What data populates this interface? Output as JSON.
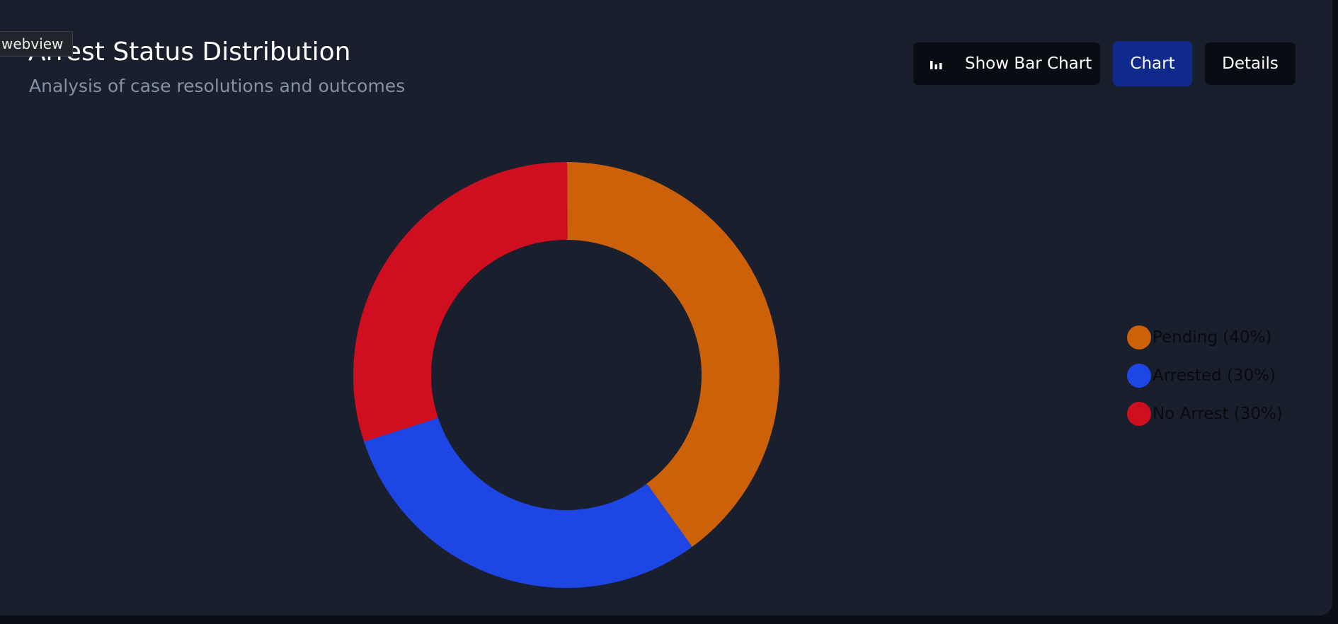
{
  "webview_tag": "webview",
  "header": {
    "title": "Arrest Status Distribution",
    "subtitle": "Analysis of case resolutions and outcomes"
  },
  "toolbar": {
    "bar_chart_label": "Show Bar Chart",
    "bar_chart_icon": "bar-chart-icon",
    "chart_label": "Chart",
    "details_label": "Details",
    "active_view": "Chart"
  },
  "colors": {
    "pending": "#cc610a",
    "arrested": "#1d46e5",
    "no_arrest": "#cf0f20",
    "active_button": "#0f2a8c"
  },
  "legend": {
    "items": [
      {
        "label": "Pending (40%)",
        "color": "#cc610a"
      },
      {
        "label": "Arrested (30%)",
        "color": "#1d46e5"
      },
      {
        "label": "No Arrest (30%)",
        "color": "#cf0f20"
      }
    ]
  },
  "chart_data": {
    "type": "pie",
    "variant": "donut",
    "categories": [
      "Pending",
      "Arrested",
      "No Arrest"
    ],
    "values": [
      40,
      30,
      30
    ],
    "unit": "%",
    "colors": [
      "#cc610a",
      "#1d46e5",
      "#cf0f20"
    ],
    "legend_position": "right"
  }
}
